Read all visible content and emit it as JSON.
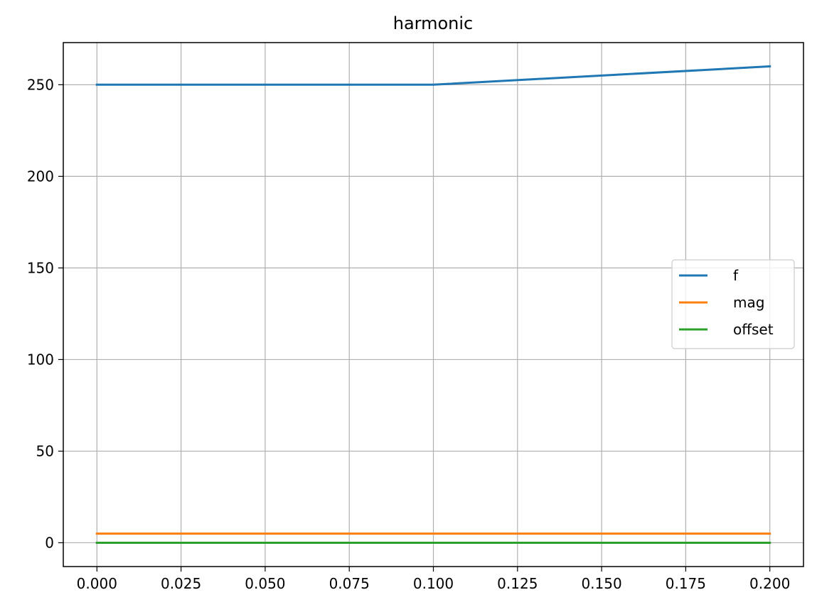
{
  "chart_data": {
    "type": "line",
    "title": "harmonic",
    "xlabel": "",
    "ylabel": "",
    "xlim": [
      -0.01,
      0.21
    ],
    "ylim": [
      -13,
      273
    ],
    "grid": true,
    "legend_position": "center-right",
    "x_ticks": [
      0.0,
      0.025,
      0.05,
      0.075,
      0.1,
      0.125,
      0.15,
      0.175,
      0.2
    ],
    "x_tick_labels": [
      "0.000",
      "0.025",
      "0.050",
      "0.075",
      "0.100",
      "0.125",
      "0.150",
      "0.175",
      "0.200"
    ],
    "y_ticks": [
      0,
      50,
      100,
      150,
      200,
      250
    ],
    "y_tick_labels": [
      "0",
      "50",
      "100",
      "150",
      "200",
      "250"
    ],
    "series": [
      {
        "name": "f",
        "color": "#1f77b4",
        "x": [
          0.0,
          0.1,
          0.2
        ],
        "y": [
          250,
          250,
          260
        ]
      },
      {
        "name": "mag",
        "color": "#ff7f0e",
        "x": [
          0.0,
          0.2
        ],
        "y": [
          5,
          5
        ]
      },
      {
        "name": "offset",
        "color": "#2ca02c",
        "x": [
          0.0,
          0.2
        ],
        "y": [
          0,
          0
        ]
      }
    ]
  }
}
